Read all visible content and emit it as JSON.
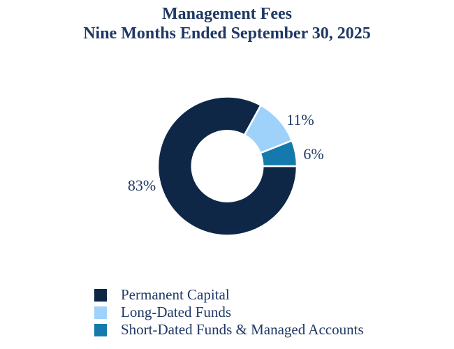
{
  "title": {
    "line1": "Management Fees",
    "line2": "Nine Months Ended September 30, 2025"
  },
  "text_color": "#1f3864",
  "background_color": "#ffffff",
  "chart_data": {
    "type": "pie",
    "subtype": "donut",
    "title": "Management Fees",
    "subtitle": "Nine Months Ended September 30, 2025",
    "categories": [
      "Permanent Capital",
      "Long-Dated Funds",
      "Short-Dated Funds & Managed Accounts"
    ],
    "values": [
      83,
      11,
      6
    ],
    "labels": [
      "83%",
      "11%",
      "6%"
    ],
    "colors": [
      "#0e2747",
      "#9fd2fa",
      "#1479ad"
    ],
    "separator_color": "#ffffff",
    "start_angle_deg": 90,
    "direction": "clockwise",
    "donut_hole_ratio": 0.51,
    "legend_position": "bottom-left",
    "grid": false
  }
}
